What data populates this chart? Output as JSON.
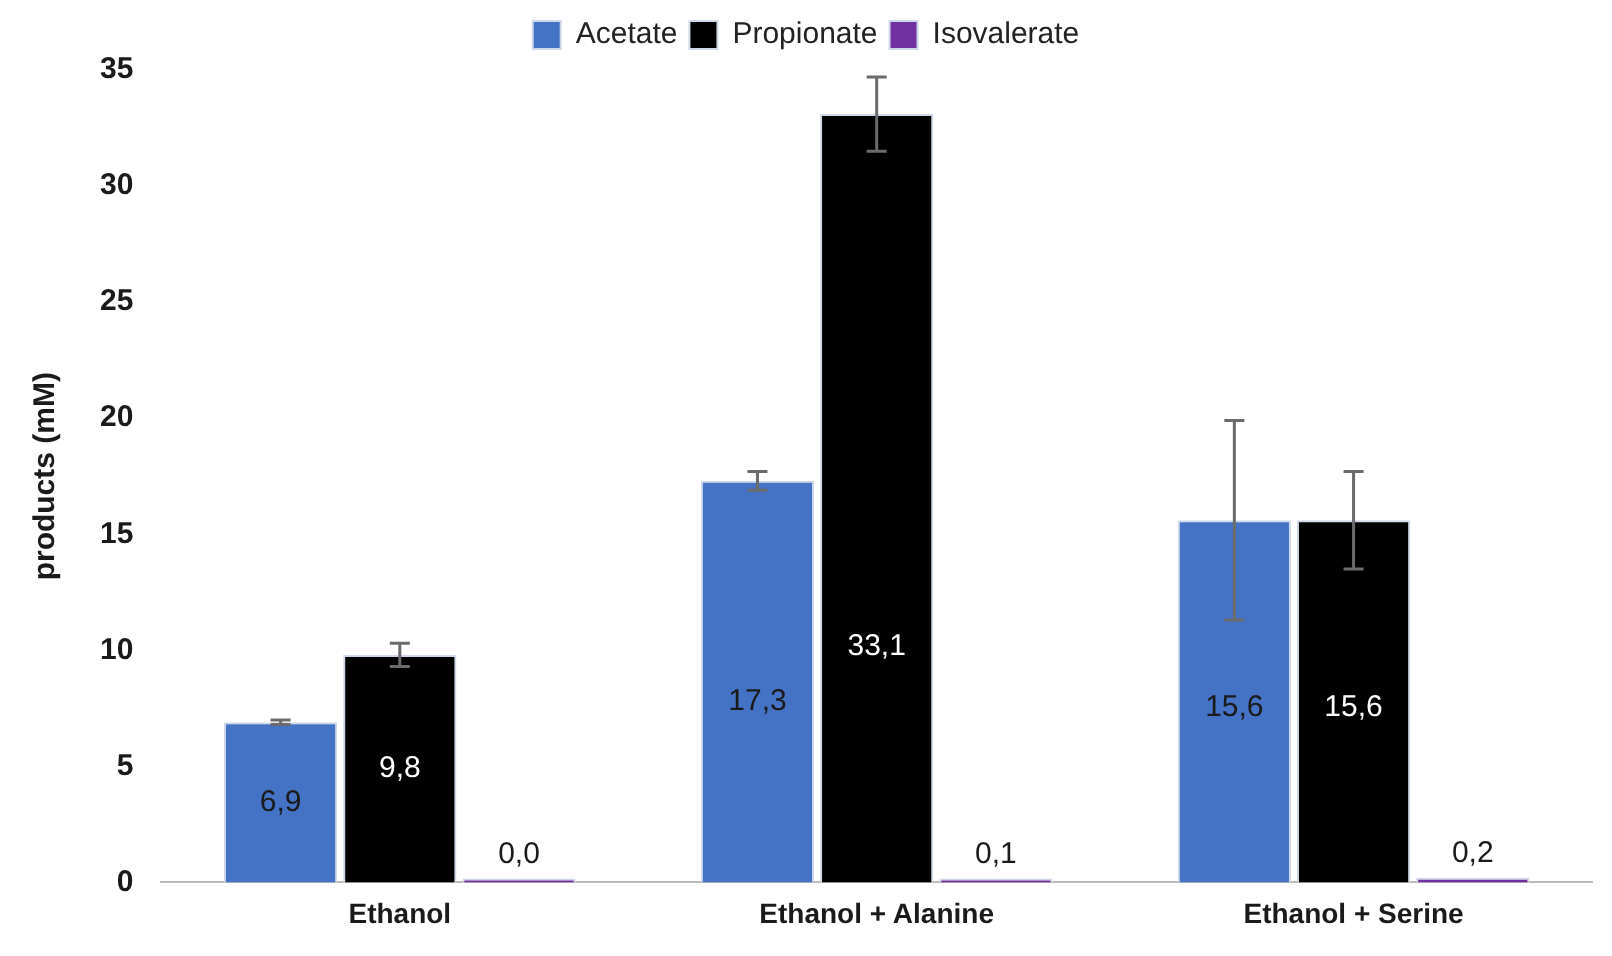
{
  "chart_data": {
    "type": "bar",
    "ylabel": "products (mM)",
    "categories": [
      "Ethanol",
      "Ethanol + Alanine",
      "Ethanol + Serine"
    ],
    "series": [
      {
        "name": "Acetate",
        "color": "#4472c4",
        "values": [
          6.9,
          17.3,
          15.6
        ],
        "errors": [
          0.1,
          0.4,
          4.3
        ],
        "value_labels": [
          "6,9",
          "17,3",
          "15,6"
        ]
      },
      {
        "name": "Propionate",
        "color": "#000000",
        "values": [
          9.8,
          33.1,
          15.6
        ],
        "errors": [
          0.5,
          1.6,
          2.1
        ],
        "value_labels": [
          "9,8",
          "33,1",
          "15,6"
        ]
      },
      {
        "name": "Isovalerate",
        "color": "#7030a0",
        "values": [
          0.0,
          0.1,
          0.2
        ],
        "value_labels": [
          "0,0",
          "0,1",
          "0,2"
        ]
      }
    ],
    "ylim": [
      0,
      35
    ],
    "yticks": [
      0,
      5,
      10,
      15,
      20,
      25,
      30,
      35
    ],
    "grid": false,
    "legend": "top"
  }
}
